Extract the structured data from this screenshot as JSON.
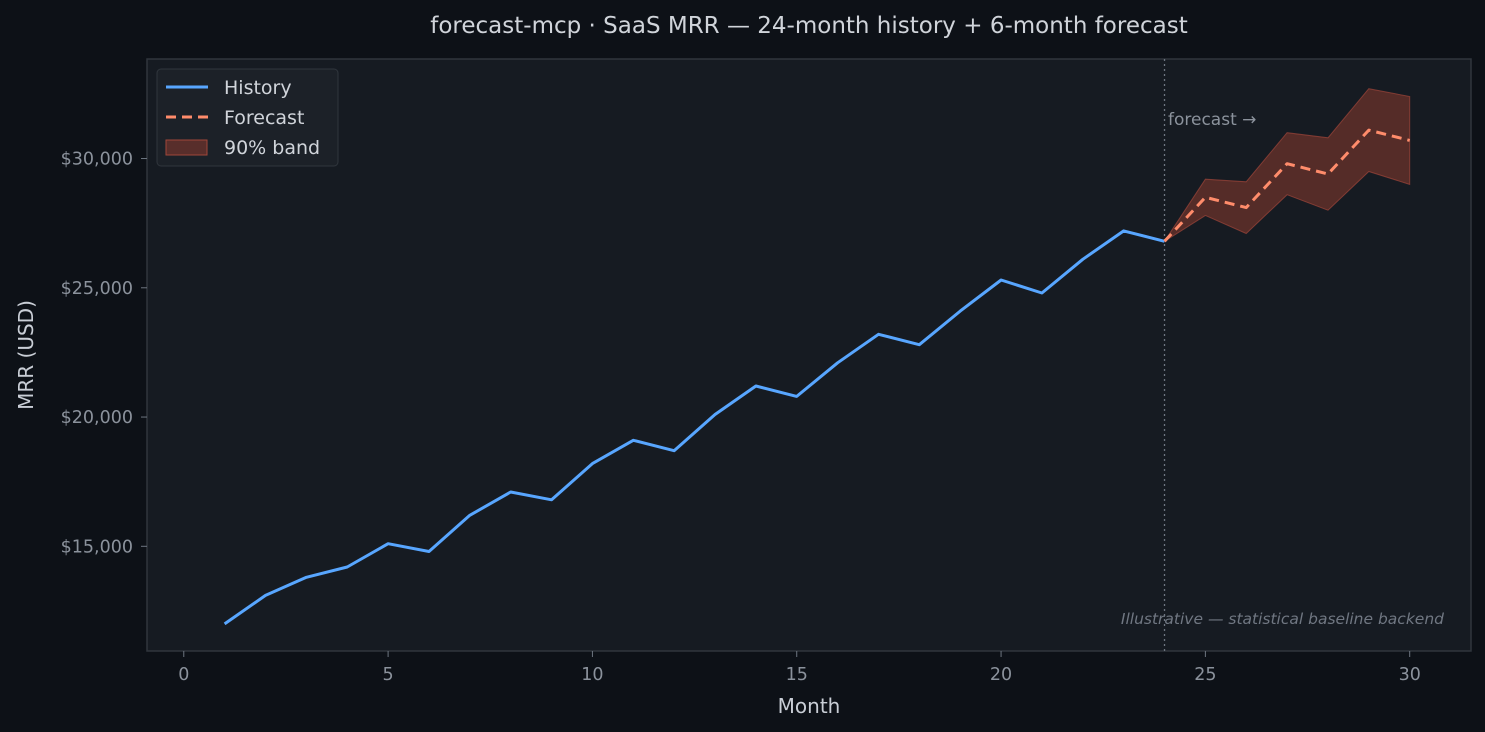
{
  "chart_data": {
    "type": "line",
    "title": "forecast-mcp  ·  SaaS MRR — 24-month history + 6-month forecast",
    "xlabel": "Month",
    "ylabel": "MRR (USD)",
    "xlim": [
      -0.9,
      31.5
    ],
    "ylim": [
      10950,
      33850
    ],
    "x_ticks": [
      0,
      5,
      10,
      15,
      20,
      25,
      30
    ],
    "y_ticks": [
      15000,
      20000,
      25000,
      30000
    ],
    "x_tick_labels": [
      "0",
      "5",
      "10",
      "15",
      "20",
      "25",
      "30"
    ],
    "y_tick_labels": [
      "$15,000",
      "$20,000",
      "$25,000",
      "$30,000"
    ],
    "grid": false,
    "legend": "top-left",
    "series": [
      {
        "name": "History",
        "style": "solid",
        "color": "#58a6ff",
        "x": [
          1,
          2,
          3,
          4,
          5,
          6,
          7,
          8,
          9,
          10,
          11,
          12,
          13,
          14,
          15,
          16,
          17,
          18,
          19,
          20,
          21,
          22,
          23,
          24
        ],
        "values": [
          12000,
          13100,
          13800,
          14200,
          15100,
          14800,
          16200,
          17100,
          16800,
          18200,
          19100,
          18700,
          20100,
          21200,
          20800,
          22100,
          23200,
          22800,
          24100,
          25300,
          24800,
          26100,
          27200,
          26800
        ]
      },
      {
        "name": "Forecast",
        "style": "dashed",
        "color": "#ff8c6b",
        "x": [
          24,
          25,
          26,
          27,
          28,
          29,
          30
        ],
        "values": [
          26800,
          28500,
          28100,
          29800,
          29400,
          31100,
          30700
        ]
      }
    ],
    "band": {
      "name": "90% band",
      "color": "#8b3a2e",
      "x": [
        24,
        25,
        26,
        27,
        28,
        29,
        30
      ],
      "lower": [
        26800,
        27800,
        27100,
        28600,
        28000,
        29500,
        29000
      ],
      "upper": [
        26800,
        29200,
        29100,
        31000,
        30800,
        32700,
        32400
      ]
    },
    "forecast_start": 24,
    "annotations": {
      "forecast_marker": "forecast →",
      "footnote": "Illustrative — statistical baseline backend"
    }
  }
}
